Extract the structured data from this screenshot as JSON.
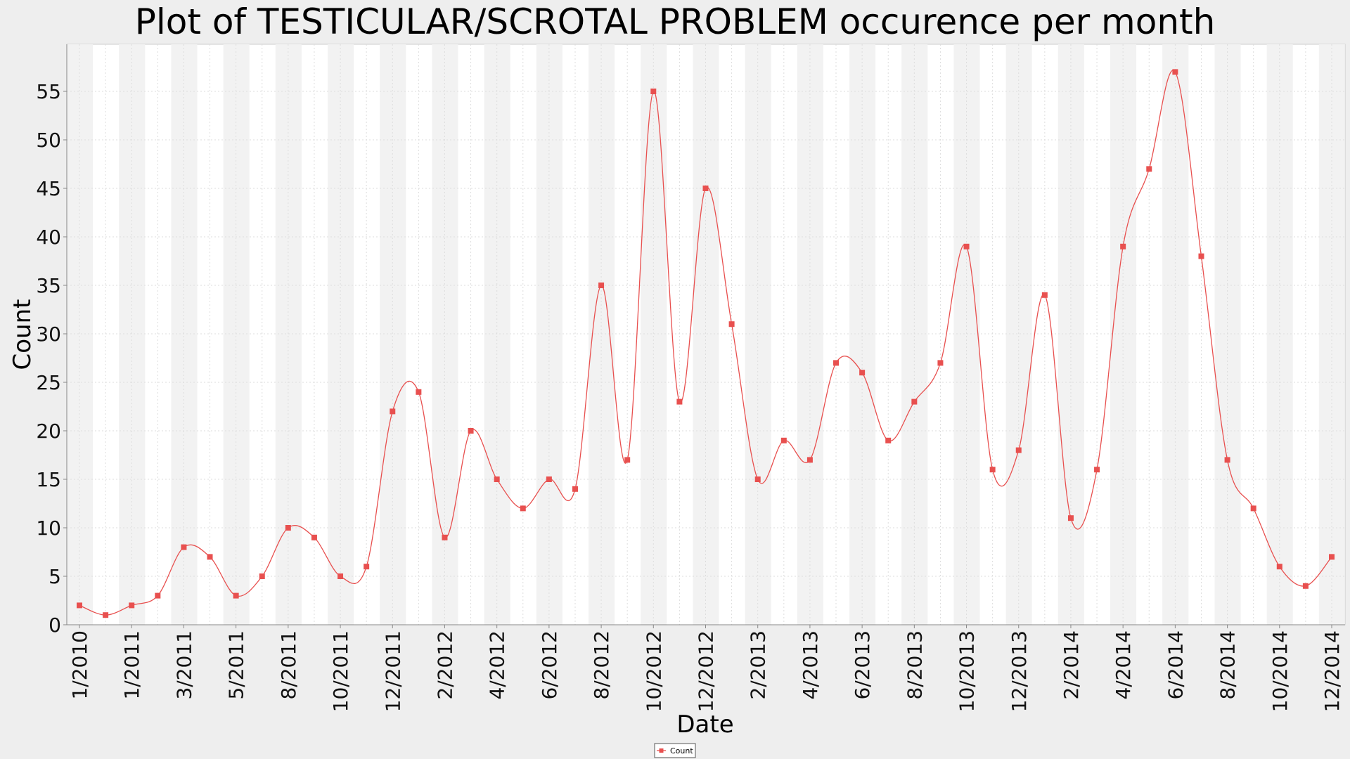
{
  "chart_data": {
    "type": "line",
    "title": "Plot of TESTICULAR/SCROTAL PROBLEM occurence per month",
    "xlabel": "Date",
    "ylabel": "Count",
    "ylim": [
      0,
      60
    ],
    "yticks": [
      0,
      5,
      10,
      15,
      20,
      25,
      30,
      35,
      40,
      45,
      50,
      55
    ],
    "grid": true,
    "legend": {
      "position": "bottom-center",
      "label": "Count"
    },
    "colors": {
      "series": "#e8504f",
      "band": "#f2f2f2",
      "plot_bg": "#ffffff",
      "page_bg": "#eeeeee"
    },
    "xticks": [
      "1/2010",
      "1/2011",
      "3/2011",
      "5/2011",
      "8/2011",
      "10/2011",
      "12/2011",
      "2/2012",
      "4/2012",
      "6/2012",
      "8/2012",
      "10/2012",
      "12/2012",
      "2/2013",
      "4/2013",
      "6/2013",
      "8/2013",
      "10/2013",
      "12/2013",
      "2/2014",
      "4/2014",
      "6/2014",
      "8/2014",
      "10/2014",
      "12/2014"
    ],
    "series": [
      {
        "name": "Count",
        "x": [
          "1/2010",
          "",
          "1/2011",
          "",
          "3/2011",
          "",
          "5/2011",
          "",
          "8/2011",
          "",
          "10/2011",
          "",
          "12/2011",
          "",
          "2/2012",
          "",
          "4/2012",
          "",
          "6/2012",
          "",
          "8/2012",
          "",
          "10/2012",
          "",
          "12/2012",
          "",
          "2/2013",
          "",
          "4/2013",
          "",
          "6/2013",
          "",
          "8/2013",
          "",
          "10/2013",
          "",
          "12/2013",
          "",
          "2/2014",
          "",
          "4/2014",
          "",
          "6/2014",
          "",
          "8/2014",
          "",
          "10/2014",
          "",
          "12/2014"
        ],
        "values": [
          2,
          1,
          2,
          3,
          8,
          7,
          3,
          5,
          10,
          9,
          5,
          6,
          22,
          24,
          9,
          20,
          15,
          12,
          15,
          14,
          35,
          17,
          55,
          23,
          45,
          31,
          15,
          19,
          17,
          27,
          26,
          19,
          23,
          27,
          39,
          16,
          18,
          34,
          11,
          16,
          39,
          47,
          57,
          38,
          17,
          12,
          6,
          4,
          7
        ]
      }
    ]
  }
}
